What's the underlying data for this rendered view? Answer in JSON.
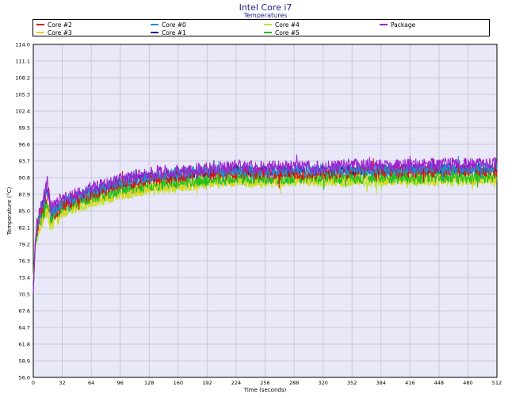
{
  "chart_data": {
    "type": "line",
    "title": "Intel Core i7",
    "subtitle": "Temperatures",
    "xlabel": "Time (seconds)",
    "ylabel": "Temperature (°C)",
    "xlim": [
      0,
      512
    ],
    "ylim": [
      56.0,
      114.0
    ],
    "x_ticks": [
      "0",
      "32",
      "64",
      "96",
      "128",
      "160",
      "192",
      "224",
      "256",
      "288",
      "320",
      "352",
      "384",
      "416",
      "448",
      "480",
      "512"
    ],
    "y_ticks": [
      "56.0",
      "58.9",
      "61.8",
      "64.7",
      "67.6",
      "70.5",
      "73.4",
      "76.3",
      "79.2",
      "82.1",
      "85.0",
      "87.9",
      "90.8",
      "93.7",
      "96.6",
      "99.5",
      "102.4",
      "105.3",
      "108.2",
      "111.1",
      "114.0"
    ],
    "grid": true,
    "legend_position": "top",
    "series": [
      {
        "name": "Core #2",
        "color": "#e01010",
        "values": [
          [
            0,
            71.0
          ],
          [
            2,
            78.5
          ],
          [
            4,
            81.5
          ],
          [
            8,
            84.5
          ],
          [
            12,
            86.5
          ],
          [
            16,
            88.5
          ],
          [
            18,
            86.0
          ],
          [
            20,
            84.5
          ],
          [
            24,
            85.0
          ],
          [
            32,
            86.0
          ],
          [
            48,
            87.0
          ],
          [
            64,
            88.0
          ],
          [
            96,
            89.5
          ],
          [
            128,
            90.5
          ],
          [
            160,
            91.0
          ],
          [
            192,
            91.5
          ],
          [
            224,
            91.5
          ],
          [
            256,
            91.5
          ],
          [
            288,
            91.5
          ],
          [
            320,
            91.5
          ],
          [
            352,
            91.8
          ],
          [
            384,
            91.8
          ],
          [
            416,
            91.8
          ],
          [
            448,
            92.0
          ],
          [
            480,
            92.0
          ],
          [
            512,
            92.0
          ]
        ]
      },
      {
        "name": "Core #3",
        "color": "#e8d020",
        "values": [
          [
            0,
            73.5
          ],
          [
            2,
            79.0
          ],
          [
            4,
            81.0
          ],
          [
            8,
            83.0
          ],
          [
            12,
            84.0
          ],
          [
            16,
            85.5
          ],
          [
            18,
            83.5
          ],
          [
            20,
            83.0
          ],
          [
            24,
            84.0
          ],
          [
            32,
            85.0
          ],
          [
            48,
            86.0
          ],
          [
            64,
            86.8
          ],
          [
            96,
            88.0
          ],
          [
            128,
            89.0
          ],
          [
            160,
            89.5
          ],
          [
            192,
            90.0
          ],
          [
            224,
            90.3
          ],
          [
            256,
            90.3
          ],
          [
            288,
            90.5
          ],
          [
            320,
            90.5
          ],
          [
            352,
            90.5
          ],
          [
            384,
            90.5
          ],
          [
            416,
            90.6
          ],
          [
            448,
            90.6
          ],
          [
            480,
            90.6
          ],
          [
            512,
            90.7
          ]
        ]
      },
      {
        "name": "Core #0",
        "color": "#1e90d0",
        "values": [
          [
            0,
            71.0
          ],
          [
            2,
            79.0
          ],
          [
            4,
            82.0
          ],
          [
            8,
            85.0
          ],
          [
            12,
            87.0
          ],
          [
            16,
            89.0
          ],
          [
            18,
            86.5
          ],
          [
            20,
            85.0
          ],
          [
            24,
            85.5
          ],
          [
            32,
            86.5
          ],
          [
            48,
            87.5
          ],
          [
            64,
            88.5
          ],
          [
            96,
            90.0
          ],
          [
            128,
            91.0
          ],
          [
            160,
            91.5
          ],
          [
            192,
            92.0
          ],
          [
            224,
            92.0
          ],
          [
            256,
            92.0
          ],
          [
            288,
            92.0
          ],
          [
            320,
            92.0
          ],
          [
            352,
            92.2
          ],
          [
            384,
            92.2
          ],
          [
            416,
            92.3
          ],
          [
            448,
            92.4
          ],
          [
            480,
            92.4
          ],
          [
            512,
            92.5
          ]
        ]
      },
      {
        "name": "Core #1",
        "color": "#1a1a9a",
        "values": [
          [
            0,
            70.5
          ],
          [
            2,
            78.5
          ],
          [
            4,
            81.5
          ],
          [
            8,
            84.5
          ],
          [
            12,
            86.5
          ],
          [
            16,
            88.5
          ],
          [
            18,
            86.0
          ],
          [
            20,
            84.5
          ],
          [
            24,
            85.0
          ],
          [
            32,
            86.0
          ],
          [
            48,
            87.2
          ],
          [
            64,
            88.2
          ],
          [
            96,
            89.8
          ],
          [
            128,
            90.8
          ],
          [
            160,
            91.2
          ],
          [
            192,
            91.8
          ],
          [
            224,
            91.8
          ],
          [
            256,
            91.8
          ],
          [
            288,
            91.8
          ],
          [
            320,
            91.8
          ],
          [
            352,
            92.0
          ],
          [
            384,
            92.0
          ],
          [
            416,
            92.0
          ],
          [
            448,
            92.2
          ],
          [
            480,
            92.2
          ],
          [
            512,
            92.2
          ]
        ]
      },
      {
        "name": "Core #4",
        "color": "#b8e830",
        "values": [
          [
            0,
            73.0
          ],
          [
            2,
            78.5
          ],
          [
            4,
            80.5
          ],
          [
            8,
            82.5
          ],
          [
            12,
            83.5
          ],
          [
            16,
            85.0
          ],
          [
            18,
            83.0
          ],
          [
            20,
            82.5
          ],
          [
            24,
            83.5
          ],
          [
            32,
            84.5
          ],
          [
            48,
            85.5
          ],
          [
            64,
            86.5
          ],
          [
            96,
            87.8
          ],
          [
            128,
            88.8
          ],
          [
            160,
            89.3
          ],
          [
            192,
            89.8
          ],
          [
            224,
            90.0
          ],
          [
            256,
            90.0
          ],
          [
            288,
            90.2
          ],
          [
            320,
            90.2
          ],
          [
            352,
            90.2
          ],
          [
            384,
            90.2
          ],
          [
            416,
            90.3
          ],
          [
            448,
            90.3
          ],
          [
            480,
            90.3
          ],
          [
            512,
            90.4
          ]
        ]
      },
      {
        "name": "Core #5",
        "color": "#20c020",
        "values": [
          [
            0,
            72.5
          ],
          [
            2,
            79.0
          ],
          [
            4,
            81.5
          ],
          [
            8,
            83.5
          ],
          [
            12,
            85.0
          ],
          [
            16,
            86.5
          ],
          [
            18,
            84.5
          ],
          [
            20,
            83.5
          ],
          [
            24,
            84.5
          ],
          [
            32,
            85.5
          ],
          [
            48,
            86.5
          ],
          [
            64,
            87.3
          ],
          [
            96,
            88.5
          ],
          [
            128,
            89.5
          ],
          [
            160,
            90.0
          ],
          [
            192,
            90.4
          ],
          [
            224,
            90.6
          ],
          [
            256,
            90.6
          ],
          [
            288,
            90.8
          ],
          [
            320,
            90.8
          ],
          [
            352,
            90.8
          ],
          [
            384,
            90.8
          ],
          [
            416,
            90.9
          ],
          [
            448,
            90.9
          ],
          [
            480,
            90.9
          ],
          [
            512,
            91.0
          ]
        ]
      },
      {
        "name": "Package",
        "color": "#a020d0",
        "values": [
          [
            0,
            71.0
          ],
          [
            2,
            79.5
          ],
          [
            4,
            82.5
          ],
          [
            8,
            85.5
          ],
          [
            12,
            87.5
          ],
          [
            16,
            90.0
          ],
          [
            18,
            87.0
          ],
          [
            20,
            85.5
          ],
          [
            24,
            86.0
          ],
          [
            32,
            87.0
          ],
          [
            48,
            88.0
          ],
          [
            64,
            89.0
          ],
          [
            96,
            90.5
          ],
          [
            128,
            91.5
          ],
          [
            160,
            92.0
          ],
          [
            192,
            92.5
          ],
          [
            224,
            92.7
          ],
          [
            256,
            92.7
          ],
          [
            288,
            92.7
          ],
          [
            320,
            92.7
          ],
          [
            352,
            93.0
          ],
          [
            384,
            93.0
          ],
          [
            416,
            93.0
          ],
          [
            448,
            93.2
          ],
          [
            480,
            93.2
          ],
          [
            512,
            93.3
          ]
        ]
      }
    ]
  }
}
